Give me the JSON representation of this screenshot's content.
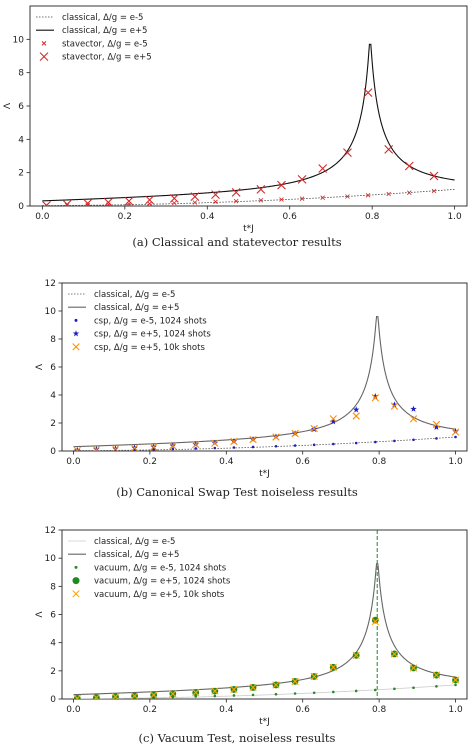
{
  "chart_data": [
    {
      "type": "line",
      "caption": "(a) Classical and statevector results",
      "xlabel": "t*J",
      "ylabel": "Λ",
      "xlim": [
        -0.03,
        1.03
      ],
      "ylim": [
        0,
        12
      ],
      "xticks": [
        "0.0",
        "0.2",
        "0.4",
        "0.6",
        "0.8",
        "1.0"
      ],
      "yticks": [
        "0",
        "2",
        "4",
        "6",
        "8",
        "10"
      ],
      "series": [
        {
          "name": "classical, Δ/g = e-5",
          "style": "dotted",
          "color": "#444444"
        },
        {
          "name": "classical, Δ/g = e+5",
          "style": "solid",
          "color": "#111111"
        },
        {
          "name": "stavector, Δ/g = e-5",
          "marker": "x-small",
          "color": "#d62728",
          "x": [
            0.01,
            0.06,
            0.11,
            0.16,
            0.21,
            0.26,
            0.32,
            0.37,
            0.42,
            0.47,
            0.53,
            0.58,
            0.63,
            0.68,
            0.74,
            0.79,
            0.84,
            0.89,
            0.95
          ],
          "y": [
            0.03,
            0.04,
            0.06,
            0.08,
            0.11,
            0.14,
            0.18,
            0.21,
            0.25,
            0.29,
            0.34,
            0.39,
            0.44,
            0.5,
            0.57,
            0.64,
            0.72,
            0.8,
            0.9
          ]
        },
        {
          "name": "stavector, Δ/g = e+5",
          "marker": "x-large",
          "color": "#d62728",
          "x": [
            0.01,
            0.06,
            0.11,
            0.16,
            0.21,
            0.26,
            0.32,
            0.37,
            0.42,
            0.47,
            0.53,
            0.58,
            0.63,
            0.68,
            0.74,
            0.79,
            0.84,
            0.89,
            0.95
          ],
          "y": [
            0.04,
            0.1,
            0.16,
            0.22,
            0.29,
            0.37,
            0.46,
            0.56,
            0.68,
            0.82,
            1.0,
            1.25,
            1.6,
            2.25,
            3.2,
            6.8,
            3.4,
            2.4,
            1.8
          ]
        }
      ]
    },
    {
      "type": "line",
      "caption": "(b) Canonical Swap Test noiseless results",
      "xlabel": "t*J",
      "ylabel": "Λ",
      "xlim": [
        -0.03,
        1.03
      ],
      "ylim": [
        0,
        12
      ],
      "xticks": [
        "0.0",
        "0.2",
        "0.4",
        "0.6",
        "0.8",
        "1.0"
      ],
      "yticks": [
        "0",
        "2",
        "4",
        "6",
        "8",
        "10",
        "12"
      ],
      "series": [
        {
          "name": "classical, Δ/g = e-5",
          "style": "dotted",
          "color": "#555555"
        },
        {
          "name": "classical, Δ/g = e+5",
          "style": "solid",
          "color": "#666666"
        },
        {
          "name": "csp, Δ/g = e-5, 1024 shots",
          "marker": "dot",
          "color": "#1f1fbf",
          "x": [
            0.01,
            0.06,
            0.11,
            0.16,
            0.21,
            0.26,
            0.32,
            0.37,
            0.42,
            0.47,
            0.53,
            0.58,
            0.63,
            0.68,
            0.74,
            0.79,
            0.84,
            0.89,
            0.95,
            1.0
          ],
          "y": [
            0.03,
            0.04,
            0.06,
            0.08,
            0.11,
            0.14,
            0.18,
            0.21,
            0.25,
            0.29,
            0.34,
            0.39,
            0.44,
            0.5,
            0.57,
            0.64,
            0.72,
            0.8,
            0.9,
            1.0
          ]
        },
        {
          "name": "csp, Δ/g = e+5, 1024 shots",
          "marker": "star",
          "color": "#1f1fcf",
          "x": [
            0.01,
            0.06,
            0.11,
            0.16,
            0.21,
            0.26,
            0.32,
            0.37,
            0.42,
            0.47,
            0.53,
            0.58,
            0.63,
            0.68,
            0.74,
            0.79,
            0.84,
            0.89,
            0.95,
            1.0
          ],
          "y": [
            0.05,
            0.12,
            0.17,
            0.23,
            0.3,
            0.38,
            0.47,
            0.58,
            0.69,
            0.83,
            1.02,
            1.25,
            1.55,
            2.1,
            2.95,
            3.9,
            3.3,
            3.0,
            1.7,
            1.4
          ]
        },
        {
          "name": "csp, Δ/g = e+5, 10k shots",
          "marker": "x",
          "color": "#ff8c00",
          "x": [
            0.01,
            0.06,
            0.11,
            0.16,
            0.21,
            0.26,
            0.32,
            0.37,
            0.42,
            0.47,
            0.53,
            0.58,
            0.63,
            0.68,
            0.74,
            0.79,
            0.84,
            0.89,
            0.95,
            1.0
          ],
          "y": [
            0.04,
            0.1,
            0.16,
            0.22,
            0.29,
            0.37,
            0.46,
            0.56,
            0.68,
            0.82,
            1.0,
            1.25,
            1.6,
            2.3,
            2.5,
            3.8,
            3.2,
            2.3,
            1.9,
            1.35
          ]
        }
      ]
    },
    {
      "type": "line",
      "caption": "(c) Vacuum Test, noiseless results",
      "xlabel": "t*J",
      "ylabel": "Λ",
      "xlim": [
        -0.03,
        1.03
      ],
      "ylim": [
        0,
        12
      ],
      "xticks": [
        "0.0",
        "0.2",
        "0.4",
        "0.6",
        "0.8",
        "1.0"
      ],
      "yticks": [
        "0",
        "2",
        "4",
        "6",
        "8",
        "10",
        "12"
      ],
      "vline": {
        "x": 0.795,
        "color": "#1a8a1a"
      },
      "series": [
        {
          "name": "classical, Δ/g = e-5",
          "style": "solid-thin",
          "color": "#cccccc"
        },
        {
          "name": "classical, Δ/g = e+5",
          "style": "solid",
          "color": "#666666"
        },
        {
          "name": "vacuum, Δ/g = e-5, 1024 shots",
          "marker": "dot",
          "color": "#2a8a2a",
          "x": [
            0.01,
            0.06,
            0.11,
            0.16,
            0.21,
            0.26,
            0.32,
            0.37,
            0.42,
            0.47,
            0.53,
            0.58,
            0.63,
            0.68,
            0.74,
            0.79,
            0.84,
            0.89,
            0.95,
            1.0
          ],
          "y": [
            0.03,
            0.04,
            0.06,
            0.08,
            0.11,
            0.14,
            0.18,
            0.21,
            0.25,
            0.29,
            0.34,
            0.39,
            0.44,
            0.5,
            0.57,
            0.64,
            0.72,
            0.8,
            0.9,
            1.0
          ]
        },
        {
          "name": "vacuum, Δ/g = e+5, 1024 shots",
          "marker": "big-dot",
          "color": "#1f8a1f",
          "x": [
            0.01,
            0.06,
            0.11,
            0.16,
            0.21,
            0.26,
            0.32,
            0.37,
            0.42,
            0.47,
            0.53,
            0.58,
            0.63,
            0.68,
            0.74,
            0.79,
            0.84,
            0.89,
            0.95,
            1.0
          ],
          "y": [
            0.04,
            0.1,
            0.16,
            0.22,
            0.29,
            0.37,
            0.46,
            0.56,
            0.68,
            0.82,
            1.0,
            1.25,
            1.6,
            2.25,
            3.1,
            5.6,
            3.2,
            2.2,
            1.7,
            1.35
          ]
        },
        {
          "name": "vacuum, Δ/g = e+5, 10k shots",
          "marker": "x",
          "color": "#ffa500",
          "x": [
            0.01,
            0.06,
            0.11,
            0.16,
            0.21,
            0.26,
            0.32,
            0.37,
            0.42,
            0.47,
            0.53,
            0.58,
            0.63,
            0.68,
            0.74,
            0.79,
            0.84,
            0.89,
            0.95,
            1.0
          ],
          "y": [
            0.04,
            0.1,
            0.16,
            0.22,
            0.29,
            0.37,
            0.46,
            0.56,
            0.68,
            0.82,
            1.0,
            1.25,
            1.6,
            2.25,
            3.1,
            5.5,
            3.2,
            2.2,
            1.7,
            1.35
          ]
        }
      ]
    }
  ]
}
